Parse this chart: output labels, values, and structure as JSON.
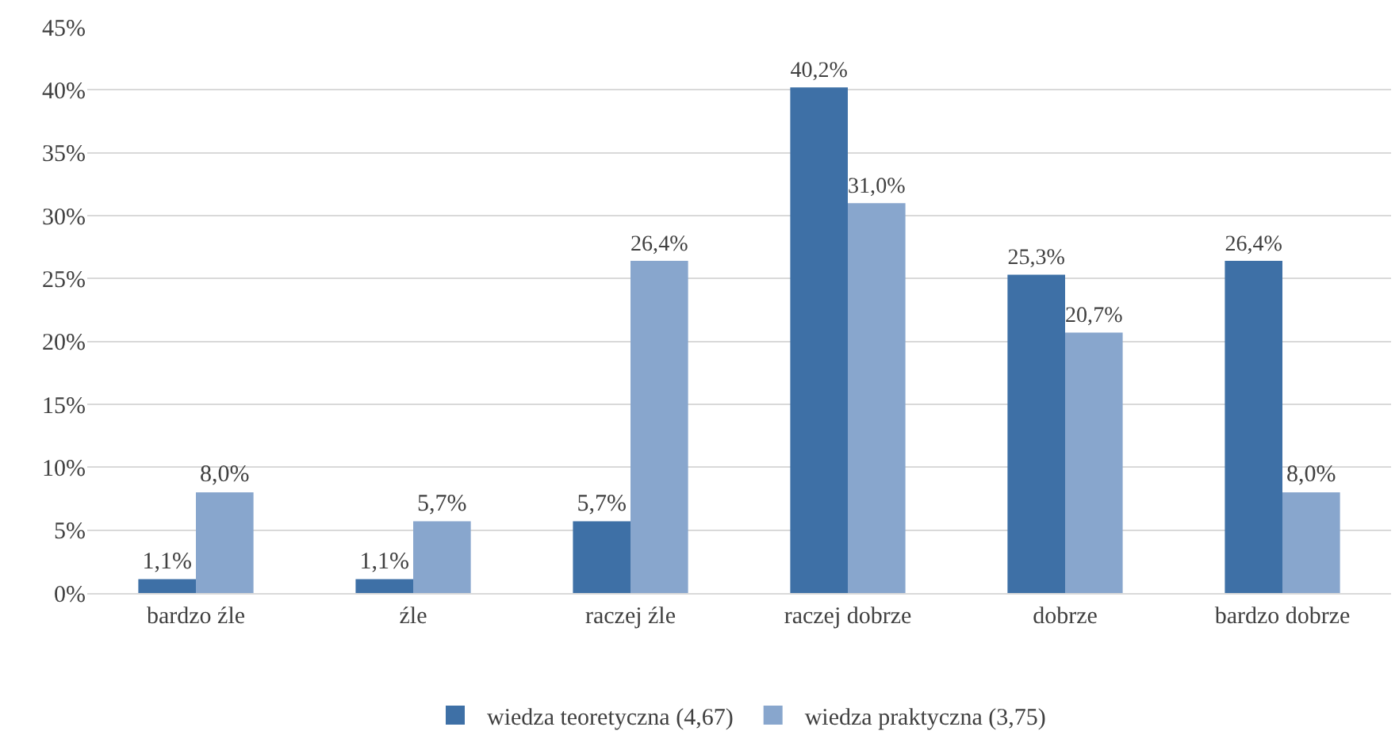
{
  "chart_data": {
    "type": "bar",
    "categories": [
      "bardzo źle",
      "źle",
      "raczej źle",
      "raczej dobrze",
      "dobrze",
      "bardzo dobrze"
    ],
    "series": [
      {
        "name": "wiedza teoretyczna (4,67)",
        "color": "#3e70a6",
        "values": [
          1.1,
          1.1,
          5.7,
          40.2,
          25.3,
          26.4
        ],
        "value_labels": [
          "1,1%",
          "1,1%",
          "5,7%",
          "40,2%",
          "25,3%",
          "26,4%"
        ]
      },
      {
        "name": "wiedza praktyczna (3,75)",
        "color": "#88a6cd",
        "values": [
          8.0,
          5.7,
          26.4,
          31.0,
          20.7,
          8.0
        ],
        "value_labels": [
          "8,0%",
          "5,7%",
          "26,4%",
          "31,0%",
          "20,7%",
          "8,0%"
        ]
      }
    ],
    "ylim": [
      0,
      45
    ],
    "yticks": [
      {
        "value": 0,
        "label": "0%"
      },
      {
        "value": 5,
        "label": "5%"
      },
      {
        "value": 10,
        "label": "10%"
      },
      {
        "value": 15,
        "label": "15%"
      },
      {
        "value": 20,
        "label": "20%"
      },
      {
        "value": 25,
        "label": "25%"
      },
      {
        "value": 30,
        "label": "30%"
      },
      {
        "value": 35,
        "label": "35%"
      },
      {
        "value": 40,
        "label": "40%"
      },
      {
        "value": 45,
        "label": "45%"
      }
    ],
    "grid": "y",
    "legend": "bottom"
  }
}
